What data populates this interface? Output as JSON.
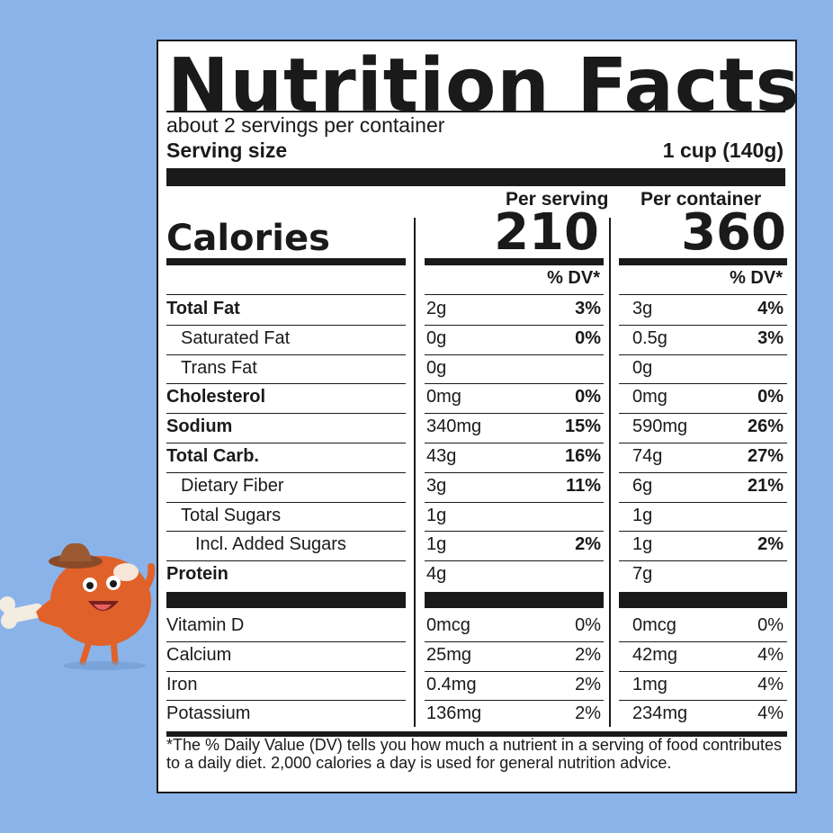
{
  "colors": {
    "background": "#8ab3ea",
    "ink": "#1a1a1a",
    "panel": "#ffffff",
    "mascot": "#e0622a"
  },
  "title": "Nutrition Facts",
  "servings_per_container": "about 2 servings per container",
  "serving_size_label": "Serving size",
  "serving_size_value": "1 cup (140g)",
  "per_serving_header": "Per serving",
  "per_container_header": "Per container",
  "calories_label": "Calories",
  "calories_per_serving": "210",
  "calories_per_container": "360",
  "dv_header": "% DV*",
  "nutrients": [
    {
      "name": "Total Fat",
      "bold": true,
      "indent": 0,
      "serving_amount": "2g",
      "serving_dv": "3%",
      "container_amount": "3g",
      "container_dv": "4%"
    },
    {
      "name": "Saturated Fat",
      "bold": false,
      "indent": 1,
      "serving_amount": "0g",
      "serving_dv": "0%",
      "container_amount": "0.5g",
      "container_dv": "3%"
    },
    {
      "name": "Trans Fat",
      "bold": false,
      "indent": 1,
      "serving_amount": "0g",
      "serving_dv": "",
      "container_amount": "0g",
      "container_dv": ""
    },
    {
      "name": "Cholesterol",
      "bold": true,
      "indent": 0,
      "serving_amount": "0mg",
      "serving_dv": "0%",
      "container_amount": "0mg",
      "container_dv": "0%"
    },
    {
      "name": "Sodium",
      "bold": true,
      "indent": 0,
      "serving_amount": "340mg",
      "serving_dv": "15%",
      "container_amount": "590mg",
      "container_dv": "26%"
    },
    {
      "name": "Total Carb.",
      "bold": true,
      "indent": 0,
      "serving_amount": "43g",
      "serving_dv": "16%",
      "container_amount": "74g",
      "container_dv": "27%"
    },
    {
      "name": "Dietary Fiber",
      "bold": false,
      "indent": 1,
      "serving_amount": "3g",
      "serving_dv": "11%",
      "container_amount": "6g",
      "container_dv": "21%"
    },
    {
      "name": "Total Sugars",
      "bold": false,
      "indent": 1,
      "serving_amount": "1g",
      "serving_dv": "",
      "container_amount": "1g",
      "container_dv": ""
    },
    {
      "name": "Incl. Added Sugars",
      "bold": false,
      "indent": 2,
      "serving_amount": "1g",
      "serving_dv": "2%",
      "container_amount": "1g",
      "container_dv": "2%"
    },
    {
      "name": "Protein",
      "bold": true,
      "indent": 0,
      "serving_amount": "4g",
      "serving_dv": "",
      "container_amount": "7g",
      "container_dv": ""
    }
  ],
  "vitamins": [
    {
      "name": "Vitamin D",
      "serving_amount": "0mcg",
      "serving_dv": "0%",
      "container_amount": "0mcg",
      "container_dv": "0%"
    },
    {
      "name": "Calcium",
      "serving_amount": "25mg",
      "serving_dv": "2%",
      "container_amount": "42mg",
      "container_dv": "4%"
    },
    {
      "name": "Iron",
      "serving_amount": "0.4mg",
      "serving_dv": "2%",
      "container_amount": "1mg",
      "container_dv": "4%"
    },
    {
      "name": "Potassium",
      "serving_amount": "136mg",
      "serving_dv": "2%",
      "container_amount": "234mg",
      "container_dv": "4%"
    }
  ],
  "footnote": "*The % Daily Value (DV) tells you how much a nutrient in a serving of food contributes to a daily diet. 2,000 calories a day is used for general nutrition advice.",
  "mascot_icon": "chicken-drumstick-cowboy-mascot-icon"
}
